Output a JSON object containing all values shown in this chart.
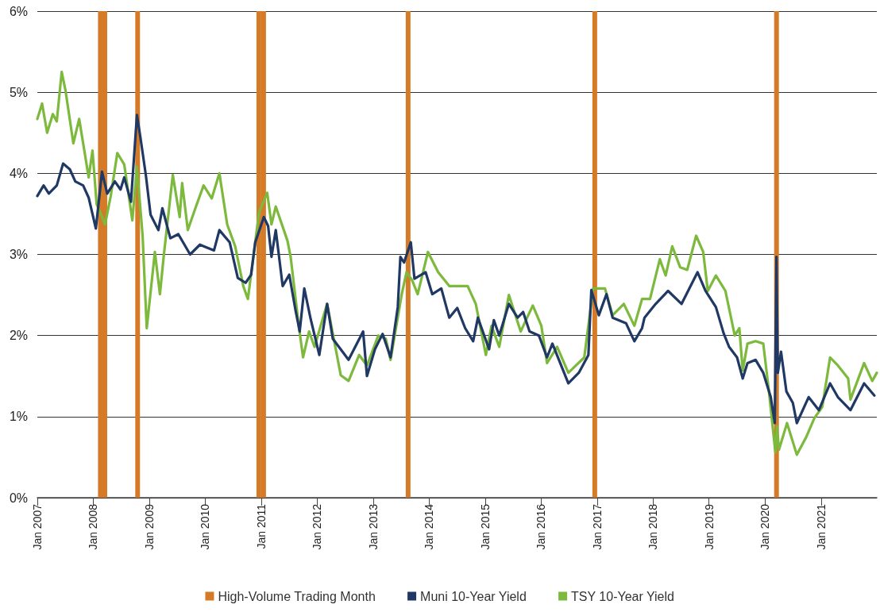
{
  "chart_data": {
    "type": "line",
    "xlim": [
      "2007-01-01",
      "2021-12-31"
    ],
    "xticks": [
      {
        "value": "2007-01-01",
        "label": "Jan 2007"
      },
      {
        "value": "2008-01-01",
        "label": "Jan 2008"
      },
      {
        "value": "2009-01-01",
        "label": "Jan 2009"
      },
      {
        "value": "2010-01-01",
        "label": "Jan 2010"
      },
      {
        "value": "2011-01-01",
        "label": "Jan 2011"
      },
      {
        "value": "2012-01-01",
        "label": "Jan 2012"
      },
      {
        "value": "2013-01-01",
        "label": "Jan 2013"
      },
      {
        "value": "2014-01-01",
        "label": "Jan 2014"
      },
      {
        "value": "2015-01-01",
        "label": "Jan 2015"
      },
      {
        "value": "2016-01-01",
        "label": "Jan 2016"
      },
      {
        "value": "2017-01-01",
        "label": "Jan 2017"
      },
      {
        "value": "2018-01-01",
        "label": "Jan 2018"
      },
      {
        "value": "2019-01-01",
        "label": "Jan 2019"
      },
      {
        "value": "2020-01-01",
        "label": "Jan 2020"
      },
      {
        "value": "2021-01-01",
        "label": "Jan 2021"
      }
    ],
    "ylim": [
      0,
      6
    ],
    "yticks": [
      {
        "value": 0,
        "label": "0%"
      },
      {
        "value": 1,
        "label": "1%"
      },
      {
        "value": 2,
        "label": "2%"
      },
      {
        "value": 3,
        "label": "3%"
      },
      {
        "value": 4,
        "label": "4%"
      },
      {
        "value": 5,
        "label": "5%"
      },
      {
        "value": 6,
        "label": "6%"
      }
    ],
    "grid": "y",
    "legend": "bottom",
    "marker": "none",
    "line_style": "solid",
    "bands": [
      {
        "axis": "x",
        "from": "2008-02",
        "to": "2008-03",
        "label": "High-Volume Trading Month",
        "color": "#d57b27"
      },
      {
        "axis": "x",
        "from": "2008-03",
        "to": "2008-04",
        "color": "#d57b27"
      },
      {
        "axis": "x",
        "from": "2008-10",
        "to": "2008-11",
        "color": "#d57b27"
      },
      {
        "axis": "x",
        "from": "2010-12",
        "to": "2011-01",
        "color": "#d57b27"
      },
      {
        "axis": "x",
        "from": "2011-01",
        "to": "2011-02",
        "color": "#d57b27"
      },
      {
        "axis": "x",
        "from": "2013-08",
        "to": "2013-09",
        "color": "#d57b27"
      },
      {
        "axis": "x",
        "from": "2016-12",
        "to": "2017-01",
        "color": "#d57b27"
      },
      {
        "axis": "x",
        "from": "2020-03",
        "to": "2020-04",
        "color": "#d57b27"
      }
    ],
    "series": [
      {
        "name": "Muni 10-Year Yield",
        "color": "#203864",
        "x": [
          "2007-01-01",
          "2007-02-11",
          "2007-03-17",
          "2007-05-08",
          "2007-06-18",
          "2007-08-01",
          "2007-09-06",
          "2007-10-27",
          "2007-12-02",
          "2008-01-18",
          "2008-02-27",
          "2008-04-01",
          "2008-05-21",
          "2008-06-27",
          "2008-07-21",
          "2008-09-03",
          "2008-10-12",
          "2008-11-03",
          "2008-12-09",
          "2009-01-09",
          "2009-03-01",
          "2009-03-27",
          "2009-05-18",
          "2009-07-09",
          "2009-09-24",
          "2009-11-27",
          "2010-02-27",
          "2010-04-03",
          "2010-06-09",
          "2010-08-01",
          "2010-09-21",
          "2010-10-27",
          "2010-11-23",
          "2011-01-18",
          "2011-02-15",
          "2011-03-09",
          "2011-04-06",
          "2011-05-21",
          "2011-07-03",
          "2011-08-12",
          "2011-09-09",
          "2011-10-09",
          "2011-11-20",
          "2012-01-15",
          "2012-03-06",
          "2012-04-12",
          "2012-07-24",
          "2012-10-27",
          "2012-11-21",
          "2013-01-12",
          "2013-03-03",
          "2013-04-24",
          "2013-06-10",
          "2013-06-27",
          "2013-07-21",
          "2013-09-03",
          "2013-09-27",
          "2013-12-09",
          "2014-01-21",
          "2014-03-21",
          "2014-05-12",
          "2014-07-03",
          "2014-08-24",
          "2014-10-15",
          "2014-11-15",
          "2015-01-27",
          "2015-02-27",
          "2015-04-03",
          "2015-06-05",
          "2015-08-01",
          "2015-09-06",
          "2015-10-18",
          "2015-12-18",
          "2016-02-09",
          "2016-03-15",
          "2016-06-27",
          "2016-09-03",
          "2016-11-05",
          "2016-11-24",
          "2017-01-12",
          "2017-03-03",
          "2017-04-12",
          "2017-07-09",
          "2017-09-01",
          "2017-10-21",
          "2017-11-06",
          "2018-01-18",
          "2018-04-09",
          "2018-07-06",
          "2018-10-18",
          "2018-12-09",
          "2019-02-15",
          "2019-04-06",
          "2019-05-12",
          "2019-07-03",
          "2019-08-09",
          "2019-09-09",
          "2019-11-01",
          "2019-12-21",
          "2020-02-08",
          "2020-03-05",
          "2020-03-16",
          "2020-03-25",
          "2020-04-15",
          "2020-05-20",
          "2020-07-01",
          "2020-07-27",
          "2020-10-12",
          "2020-12-18",
          "2021-03-01",
          "2021-04-21",
          "2021-07-12",
          "2021-10-09",
          "2021-12-15"
        ],
        "values": [
          3.72,
          3.85,
          3.75,
          3.85,
          4.12,
          4.05,
          3.9,
          3.85,
          3.7,
          3.32,
          4.02,
          3.75,
          3.9,
          3.8,
          3.95,
          3.65,
          4.72,
          4.45,
          3.98,
          3.49,
          3.3,
          3.57,
          3.2,
          3.25,
          3.0,
          3.12,
          3.05,
          3.3,
          3.15,
          2.71,
          2.65,
          2.75,
          3.15,
          3.46,
          3.35,
          2.97,
          3.3,
          2.61,
          2.75,
          2.32,
          2.05,
          2.58,
          2.2,
          1.76,
          2.39,
          1.96,
          1.7,
          2.05,
          1.5,
          1.83,
          2.02,
          1.73,
          2.35,
          2.97,
          2.9,
          3.15,
          2.7,
          2.78,
          2.51,
          2.58,
          2.22,
          2.34,
          2.09,
          1.93,
          2.22,
          1.83,
          2.19,
          2.0,
          2.39,
          2.22,
          2.29,
          2.05,
          2.0,
          1.73,
          1.9,
          1.41,
          1.54,
          1.76,
          2.56,
          2.25,
          2.51,
          2.22,
          2.15,
          1.93,
          2.09,
          2.22,
          2.39,
          2.55,
          2.39,
          2.78,
          2.55,
          2.35,
          2.03,
          1.86,
          1.73,
          1.47,
          1.66,
          1.7,
          1.54,
          1.24,
          0.92,
          2.97,
          1.54,
          1.8,
          1.31,
          1.17,
          0.92,
          1.24,
          1.08,
          1.41,
          1.24,
          1.08,
          1.41,
          1.26
        ]
      },
      {
        "name": "TSY 10-Year Yield",
        "color": "#7cb93c",
        "x": [
          "2007-01-01",
          "2007-02-01",
          "2007-03-06",
          "2007-04-12",
          "2007-05-08",
          "2007-06-09",
          "2007-07-03",
          "2007-08-24",
          "2007-10-01",
          "2007-10-27",
          "2007-12-02",
          "2007-12-27",
          "2008-01-23",
          "2008-03-18",
          "2008-04-24",
          "2008-06-06",
          "2008-07-21",
          "2008-09-12",
          "2008-10-12",
          "2008-11-18",
          "2008-12-15",
          "2009-02-06",
          "2009-03-11",
          "2009-04-06",
          "2009-06-03",
          "2009-07-18",
          "2009-08-03",
          "2009-09-09",
          "2009-11-01",
          "2009-12-21",
          "2010-02-12",
          "2010-04-03",
          "2010-05-24",
          "2010-07-15",
          "2010-09-06",
          "2010-10-06",
          "2010-12-18",
          "2011-02-09",
          "2011-03-09",
          "2011-04-06",
          "2011-06-21",
          "2011-07-12",
          "2011-09-03",
          "2011-10-01",
          "2011-11-09",
          "2011-12-15",
          "2012-03-06",
          "2012-06-03",
          "2012-07-24",
          "2012-10-01",
          "2012-11-21",
          "2013-02-03",
          "2013-03-24",
          "2013-04-24",
          "2013-07-06",
          "2013-08-06",
          "2013-09-12",
          "2013-10-18",
          "2013-12-24",
          "2014-03-01",
          "2014-05-12",
          "2014-09-09",
          "2014-11-01",
          "2015-01-06",
          "2015-02-12",
          "2015-04-03",
          "2015-06-05",
          "2015-08-21",
          "2015-11-08",
          "2016-01-03",
          "2016-02-09",
          "2016-04-15",
          "2016-06-27",
          "2016-10-09",
          "2016-12-06",
          "2017-02-21",
          "2017-04-12",
          "2017-06-24",
          "2017-09-01",
          "2017-10-21",
          "2017-12-12",
          "2018-02-14",
          "2018-03-24",
          "2018-05-06",
          "2018-06-27",
          "2018-08-12",
          "2018-10-09",
          "2018-11-24",
          "2018-12-24",
          "2019-02-15",
          "2019-04-18",
          "2019-06-18",
          "2019-07-18",
          "2019-08-09",
          "2019-09-09",
          "2019-11-01",
          "2019-12-21",
          "2020-01-27",
          "2020-03-09",
          "2020-03-20",
          "2020-04-01",
          "2020-05-24",
          "2020-07-27",
          "2020-09-27",
          "2020-11-18",
          "2021-01-09",
          "2021-03-01",
          "2021-04-21",
          "2021-06-27",
          "2021-07-12",
          "2021-10-09",
          "2021-12-01",
          "2021-12-31"
        ],
        "values": [
          4.67,
          4.86,
          4.5,
          4.73,
          4.64,
          5.25,
          5.03,
          4.37,
          4.67,
          4.37,
          3.95,
          4.28,
          3.62,
          3.37,
          3.72,
          4.25,
          4.11,
          3.42,
          4.08,
          3.23,
          2.09,
          3.03,
          2.51,
          3.0,
          3.98,
          3.46,
          3.88,
          3.3,
          3.59,
          3.85,
          3.69,
          4.0,
          3.37,
          3.1,
          2.61,
          2.45,
          3.52,
          3.76,
          3.37,
          3.59,
          3.17,
          2.97,
          2.12,
          1.73,
          2.05,
          1.86,
          2.39,
          1.51,
          1.44,
          1.76,
          1.63,
          2.0,
          1.96,
          1.7,
          2.51,
          2.78,
          2.68,
          2.51,
          3.03,
          2.78,
          2.61,
          2.61,
          2.39,
          1.76,
          2.12,
          1.86,
          2.5,
          2.05,
          2.37,
          2.12,
          1.66,
          1.86,
          1.54,
          1.73,
          2.58,
          2.58,
          2.25,
          2.39,
          2.12,
          2.45,
          2.45,
          2.94,
          2.74,
          3.1,
          2.84,
          2.81,
          3.23,
          3.03,
          2.55,
          2.74,
          2.55,
          2.0,
          2.09,
          1.57,
          1.9,
          1.93,
          1.9,
          1.31,
          0.56,
          0.88,
          0.59,
          0.92,
          0.53,
          0.75,
          0.98,
          1.12,
          1.73,
          1.63,
          1.47,
          1.21,
          1.66,
          1.44,
          1.54
        ]
      }
    ]
  }
}
